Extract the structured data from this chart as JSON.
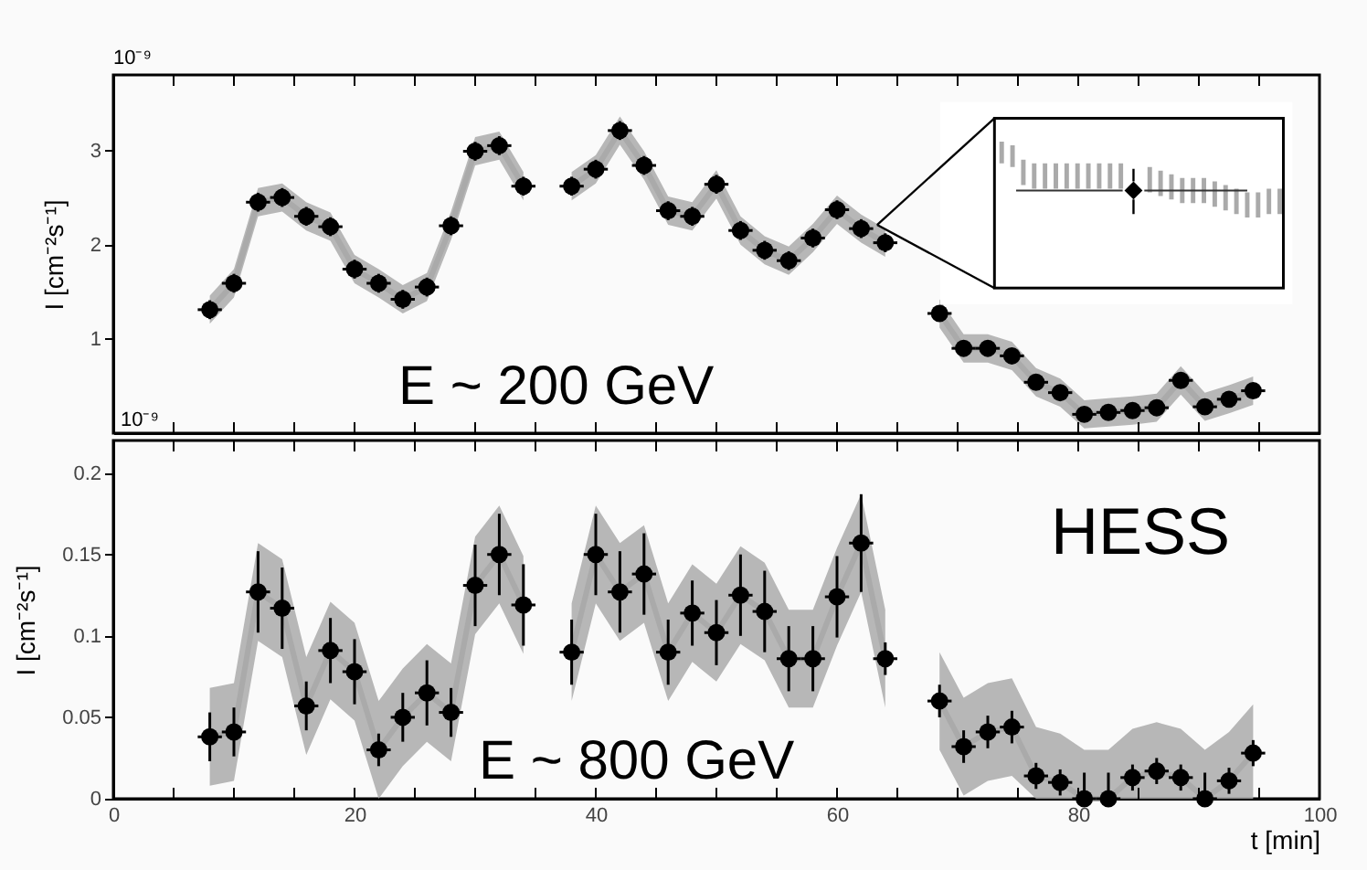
{
  "chart_data": [
    {
      "type": "scatter",
      "ylabel": "I [cm⁻²s⁻¹]",
      "annotations": [
        "10⁻⁹",
        "10⁻⁹",
        "E ~ 200 GeV"
      ],
      "xlim": [
        0,
        100
      ],
      "ylim": [
        0,
        3.8
      ],
      "xticks": [
        0,
        {
          "value": 5,
          "label": null
        },
        {
          "value": 10,
          "label": null
        },
        {
          "value": 15,
          "label": null
        },
        20,
        {
          "value": 25,
          "label": null
        },
        {
          "value": 30,
          "label": null
        },
        {
          "value": 35,
          "label": null
        },
        40,
        {
          "value": 45,
          "label": null
        },
        {
          "value": 50,
          "label": null
        },
        {
          "value": 55,
          "label": null
        },
        60,
        {
          "value": 65,
          "label": null
        },
        {
          "value": 70,
          "label": null
        },
        {
          "value": 75,
          "label": null
        },
        80,
        {
          "value": 85,
          "label": null
        },
        {
          "value": 90,
          "label": null
        },
        {
          "value": 95,
          "label": null
        },
        100
      ],
      "yticks": [
        1,
        2,
        3
      ],
      "tick_labels": "y",
      "x": [
        8,
        10,
        12,
        14,
        16,
        18,
        20,
        22,
        24,
        26,
        28,
        30,
        32,
        34,
        38,
        40,
        42,
        44,
        46,
        48,
        50,
        52,
        54,
        56,
        58,
        60,
        62,
        64,
        68.5,
        70.5,
        72.5,
        74.5,
        76.5,
        78.5,
        80.5,
        82.5,
        84.5,
        86.5,
        88.5,
        90.5,
        92.5,
        94.5
      ],
      "series": [
        {
          "type": "line",
          "color": "#aaaaaa",
          "x": [
            8,
            10,
            12,
            14,
            16,
            18,
            20,
            22,
            24,
            26,
            28,
            30,
            32,
            34,
            36,
            38,
            40,
            42,
            44,
            46,
            48,
            50,
            52,
            54,
            56,
            58,
            60,
            62,
            64,
            66.5,
            68.5,
            70.5,
            72.5,
            74.5,
            76.5,
            78.5,
            80.5,
            82.5,
            84.5,
            86.5,
            88.5,
            90.5,
            92.5,
            94.5
          ],
          "values": [
            1.31,
            1.59,
            2.45,
            2.5,
            2.3,
            2.19,
            1.74,
            1.59,
            1.42,
            1.55,
            2.2,
            2.99,
            3.05,
            2.62,
            null,
            2.62,
            2.8,
            3.21,
            2.84,
            2.36,
            2.3,
            2.64,
            2.15,
            1.94,
            1.83,
            2.07,
            2.37,
            2.17,
            2.02,
            null,
            1.27,
            0.9,
            0.9,
            0.82,
            0.54,
            0.43,
            0.2,
            0.22,
            0.24,
            0.27,
            0.56,
            0.28,
            0.36,
            0.45
          ],
          "lower": [
            1.16,
            1.44,
            2.3,
            2.35,
            2.15,
            2.04,
            1.59,
            1.44,
            1.27,
            1.4,
            2.05,
            2.84,
            2.9,
            2.47,
            null,
            2.47,
            2.65,
            3.06,
            2.69,
            2.21,
            2.15,
            2.49,
            2.0,
            1.79,
            1.68,
            1.92,
            2.22,
            2.02,
            1.87,
            null,
            1.12,
            0.75,
            0.75,
            0.67,
            0.39,
            0.28,
            0.05,
            0.07,
            0.09,
            0.12,
            0.41,
            0.13,
            0.21,
            0.3
          ],
          "upper": [
            1.46,
            1.74,
            2.6,
            2.65,
            2.45,
            2.34,
            1.89,
            1.74,
            1.57,
            1.7,
            2.35,
            3.14,
            3.2,
            2.77,
            null,
            2.77,
            2.95,
            3.36,
            2.99,
            2.51,
            2.45,
            2.79,
            2.3,
            2.09,
            1.98,
            2.22,
            2.52,
            2.32,
            2.17,
            null,
            1.42,
            1.05,
            1.05,
            0.97,
            0.69,
            0.58,
            0.35,
            0.37,
            0.39,
            0.42,
            0.71,
            0.43,
            0.51,
            0.6
          ]
        },
        {
          "type": "scatter",
          "color": "#000000",
          "values": [
            1.31,
            1.59,
            2.45,
            2.5,
            2.3,
            2.19,
            1.74,
            1.59,
            1.42,
            1.55,
            2.2,
            2.99,
            3.05,
            2.62,
            2.62,
            2.8,
            3.21,
            2.84,
            2.36,
            2.3,
            2.64,
            2.15,
            1.94,
            1.83,
            2.07,
            2.37,
            2.17,
            2.02,
            1.27,
            0.9,
            0.9,
            0.82,
            0.54,
            0.43,
            0.2,
            0.22,
            0.24,
            0.27,
            0.56,
            0.28,
            0.36,
            0.45
          ],
          "marker": "circle",
          "errors": [
            0.1,
            0.1,
            0.1,
            0.1,
            0.1,
            0.1,
            0.1,
            0.1,
            0.1,
            0.1,
            0.1,
            0.1,
            0.1,
            0.1,
            0.1,
            0.1,
            0.1,
            0.1,
            0.1,
            0.1,
            0.1,
            0.1,
            0.1,
            0.1,
            0.1,
            0.1,
            0.1,
            0.1,
            0.07,
            0.07,
            0.07,
            0.07,
            0.07,
            0.07,
            0.07,
            0.07,
            0.07,
            0.07,
            0.07,
            0.07,
            0.07,
            0.07
          ],
          "xerrors": [
            1,
            1,
            1,
            1,
            1,
            1,
            1,
            1,
            1,
            1,
            1,
            1,
            1,
            1,
            1,
            1,
            1,
            1,
            1,
            1,
            1,
            1,
            1,
            1,
            1,
            1,
            1,
            1,
            1,
            1,
            1,
            1,
            1,
            1,
            1,
            1,
            1,
            1,
            1,
            1,
            1,
            1
          ]
        }
      ]
    },
    {
      "type": "scatter",
      "ylabel": "I [cm⁻²s⁻¹]",
      "xlabel": "t [min]",
      "annotations": [
        "HESS",
        "E ~ 800 GeV"
      ],
      "xlim": [
        0,
        100
      ],
      "ylim": [
        0,
        0.22
      ],
      "xticks": [
        0,
        {
          "value": 5,
          "label": null
        },
        {
          "value": 10,
          "label": null
        },
        {
          "value": 15,
          "label": null
        },
        20,
        {
          "value": 25,
          "label": null
        },
        {
          "value": 30,
          "label": null
        },
        {
          "value": 35,
          "label": null
        },
        40,
        {
          "value": 45,
          "label": null
        },
        {
          "value": 50,
          "label": null
        },
        {
          "value": 55,
          "label": null
        },
        60,
        {
          "value": 65,
          "label": null
        },
        {
          "value": 70,
          "label": null
        },
        {
          "value": 75,
          "label": null
        },
        80,
        {
          "value": 85,
          "label": null
        },
        {
          "value": 90,
          "label": null
        },
        {
          "value": 95,
          "label": null
        },
        100
      ],
      "yticks": [
        0,
        0.05,
        0.1,
        0.15,
        0.2
      ],
      "x": [
        8,
        10,
        12,
        14,
        16,
        18,
        20,
        22,
        24,
        26,
        28,
        30,
        32,
        34,
        38,
        40,
        42,
        44,
        46,
        48,
        50,
        52,
        54,
        56,
        58,
        60,
        62,
        64,
        68.5,
        70.5,
        72.5,
        74.5,
        76.5,
        78.5,
        80.5,
        82.5,
        84.5,
        86.5,
        88.5,
        90.5,
        92.5,
        94.5
      ],
      "series": [
        {
          "type": "line",
          "color": "#aaaaaa",
          "x": [
            8,
            10,
            12,
            14,
            16,
            18,
            20,
            22,
            24,
            26,
            28,
            30,
            32,
            34,
            36,
            38,
            40,
            42,
            44,
            46,
            48,
            50,
            52,
            54,
            56,
            58,
            60,
            62,
            64,
            66.5,
            68.5,
            70.5,
            72.5,
            74.5,
            76.5,
            78.5,
            80.5,
            82.5,
            84.5,
            86.5,
            88.5,
            90.5,
            92.5,
            94.5
          ],
          "values": [
            0.038,
            0.041,
            0.127,
            0.117,
            0.057,
            0.091,
            0.078,
            0.03,
            0.05,
            0.065,
            0.053,
            0.131,
            0.15,
            0.119,
            null,
            0.09,
            0.15,
            0.127,
            0.138,
            0.09,
            0.114,
            0.102,
            0.125,
            0.115,
            0.086,
            0.086,
            0.124,
            0.157,
            0.086,
            null,
            0.06,
            0.032,
            0.041,
            0.044,
            0.014,
            0.01,
            0.0,
            0.0,
            0.013,
            0.017,
            0.013,
            0.0,
            0.011,
            0.028
          ],
          "lower": [
            0.008,
            0.011,
            0.097,
            0.087,
            0.027,
            0.061,
            0.048,
            0.0,
            0.02,
            0.035,
            0.023,
            0.101,
            0.12,
            0.089,
            null,
            0.06,
            0.12,
            0.097,
            0.108,
            0.06,
            0.084,
            0.072,
            0.095,
            0.085,
            0.056,
            0.056,
            0.094,
            0.127,
            0.056,
            null,
            0.03,
            0.002,
            0.011,
            0.014,
            0.0,
            0.0,
            0.0,
            0.0,
            0.0,
            0.0,
            0.0,
            0.0,
            0.0,
            0.0
          ],
          "upper": [
            0.068,
            0.071,
            0.157,
            0.147,
            0.087,
            0.121,
            0.108,
            0.06,
            0.08,
            0.095,
            0.083,
            0.161,
            0.18,
            0.149,
            null,
            0.12,
            0.18,
            0.157,
            0.168,
            0.12,
            0.144,
            0.132,
            0.155,
            0.145,
            0.116,
            0.116,
            0.154,
            0.187,
            0.116,
            null,
            0.09,
            0.062,
            0.071,
            0.074,
            0.044,
            0.04,
            0.03,
            0.03,
            0.043,
            0.047,
            0.043,
            0.03,
            0.041,
            0.058
          ]
        },
        {
          "type": "scatter",
          "color": "#000000",
          "values": [
            0.038,
            0.041,
            0.127,
            0.117,
            0.057,
            0.091,
            0.078,
            0.03,
            0.05,
            0.065,
            0.053,
            0.131,
            0.15,
            0.119,
            0.09,
            0.15,
            0.127,
            0.138,
            0.09,
            0.114,
            0.102,
            0.125,
            0.115,
            0.086,
            0.086,
            0.124,
            0.157,
            0.086,
            0.06,
            0.032,
            0.041,
            0.044,
            0.014,
            0.01,
            0.0,
            0.0,
            0.013,
            0.017,
            0.013,
            0.0,
            0.011,
            0.028
          ],
          "marker": "circle",
          "errors": [
            0.015,
            0.015,
            0.025,
            0.025,
            0.015,
            0.02,
            0.02,
            0.01,
            0.015,
            0.02,
            0.015,
            0.025,
            0.025,
            0.025,
            0.02,
            0.025,
            0.025,
            0.025,
            0.02,
            0.02,
            0.02,
            0.025,
            0.025,
            0.02,
            0.02,
            0.025,
            0.03,
            0.01,
            0.01,
            0.01,
            0.01,
            0.01,
            0.008,
            0.008,
            [
              0,
              0.016
            ],
            [
              0,
              0.016
            ],
            0.008,
            0.008,
            0.008,
            [
              0,
              0.016
            ],
            0.008,
            0.008
          ],
          "xerrors": [
            1,
            1,
            1,
            1,
            1,
            1,
            1,
            1,
            1,
            1,
            1,
            1,
            1,
            1,
            1,
            1,
            1,
            1,
            1,
            1,
            1,
            1,
            1,
            1,
            1,
            1,
            1,
            1,
            1,
            1,
            1,
            1,
            1,
            1,
            1,
            1,
            1,
            1,
            1,
            1,
            1,
            1
          ]
        }
      ]
    }
  ]
}
